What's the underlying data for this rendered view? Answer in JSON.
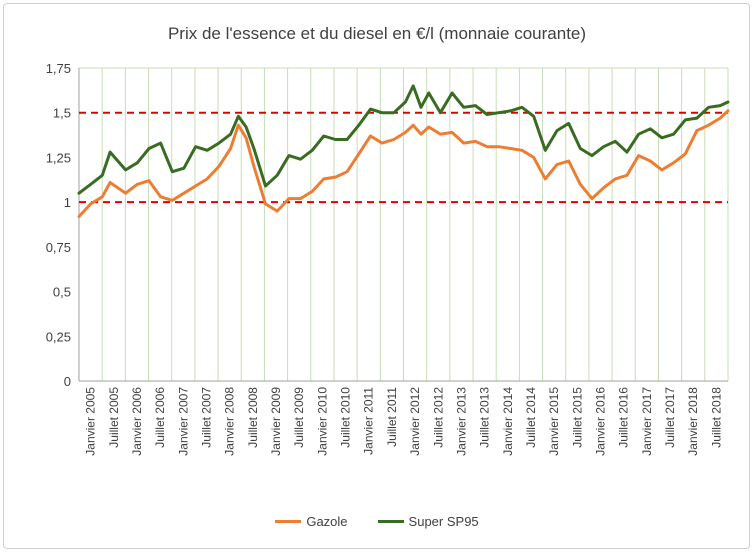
{
  "chart_data": {
    "type": "line",
    "title": "Prix de l'essence et du diesel en €/l (monnaie courante)",
    "ylim": [
      0,
      1.75
    ],
    "yticks": [
      0,
      0.25,
      0.5,
      0.75,
      1,
      1.25,
      1.5,
      1.75
    ],
    "ytick_labels": [
      "0",
      "0,25",
      "0,5",
      "0,75",
      "1",
      "1,25",
      "1,5",
      "1,75"
    ],
    "xlim": [
      "2005-01",
      "2018-12"
    ],
    "xtick_labels": [
      "Janvier 2005",
      "Juillet 2005",
      "Janvier 2006",
      "Juillet 2006",
      "Janvier 2007",
      "Juillet 2007",
      "Janvier 2008",
      "Juillet 2008",
      "Janvier 2009",
      "Juillet 2009",
      "Janvier 2010",
      "Juillet 2010",
      "Janvier 2011",
      "Juillet 2011",
      "Janvier 2012",
      "Juillet 2012",
      "Janvier 2013",
      "Juillet 2013",
      "Janvier 2014",
      "Juillet 2014",
      "Janvier 2015",
      "Juillet 2015",
      "Janvier 2016",
      "Juillet 2016",
      "Janvier 2017",
      "Juillet 2017",
      "Janvier 2018",
      "Juillet 2018"
    ],
    "reference_lines": [
      1.5,
      1
    ],
    "grid": "vertical",
    "legend_position": "bottom",
    "series": [
      {
        "name": "Gazole",
        "color": "#ed7d31",
        "x": [
          "2005-01",
          "2005-04",
          "2005-07",
          "2005-09",
          "2006-01",
          "2006-04",
          "2006-07",
          "2006-10",
          "2007-01",
          "2007-04",
          "2007-07",
          "2007-10",
          "2008-01",
          "2008-04",
          "2008-06",
          "2008-08",
          "2008-10",
          "2009-01",
          "2009-04",
          "2009-07",
          "2009-10",
          "2010-01",
          "2010-04",
          "2010-07",
          "2010-10",
          "2011-01",
          "2011-04",
          "2011-07",
          "2011-10",
          "2012-01",
          "2012-03",
          "2012-05",
          "2012-07",
          "2012-10",
          "2013-01",
          "2013-04",
          "2013-07",
          "2013-10",
          "2014-01",
          "2014-04",
          "2014-07",
          "2014-10",
          "2015-01",
          "2015-04",
          "2015-07",
          "2015-10",
          "2016-01",
          "2016-04",
          "2016-07",
          "2016-10",
          "2017-01",
          "2017-04",
          "2017-07",
          "2017-10",
          "2018-01",
          "2018-04",
          "2018-07",
          "2018-10",
          "2018-12"
        ],
        "values": [
          0.92,
          0.99,
          1.03,
          1.11,
          1.05,
          1.1,
          1.12,
          1.03,
          1.01,
          1.05,
          1.09,
          1.13,
          1.2,
          1.3,
          1.43,
          1.36,
          1.2,
          0.99,
          0.95,
          1.02,
          1.02,
          1.06,
          1.13,
          1.14,
          1.17,
          1.27,
          1.37,
          1.33,
          1.35,
          1.39,
          1.43,
          1.38,
          1.42,
          1.38,
          1.39,
          1.33,
          1.34,
          1.31,
          1.31,
          1.3,
          1.29,
          1.25,
          1.13,
          1.21,
          1.23,
          1.1,
          1.02,
          1.08,
          1.13,
          1.15,
          1.26,
          1.23,
          1.18,
          1.22,
          1.27,
          1.4,
          1.43,
          1.47,
          1.51
        ]
      },
      {
        "name": "Super SP95",
        "color": "#3a6b22",
        "x": [
          "2005-01",
          "2005-04",
          "2005-07",
          "2005-09",
          "2006-01",
          "2006-04",
          "2006-07",
          "2006-10",
          "2007-01",
          "2007-04",
          "2007-07",
          "2007-10",
          "2008-01",
          "2008-04",
          "2008-06",
          "2008-08",
          "2008-10",
          "2009-01",
          "2009-04",
          "2009-07",
          "2009-10",
          "2010-01",
          "2010-04",
          "2010-07",
          "2010-10",
          "2011-01",
          "2011-04",
          "2011-07",
          "2011-10",
          "2012-01",
          "2012-03",
          "2012-05",
          "2012-07",
          "2012-10",
          "2013-01",
          "2013-04",
          "2013-07",
          "2013-10",
          "2014-01",
          "2014-04",
          "2014-07",
          "2014-10",
          "2015-01",
          "2015-04",
          "2015-07",
          "2015-10",
          "2016-01",
          "2016-04",
          "2016-07",
          "2016-10",
          "2017-01",
          "2017-04",
          "2017-07",
          "2017-10",
          "2018-01",
          "2018-04",
          "2018-07",
          "2018-10",
          "2018-12"
        ],
        "values": [
          1.05,
          1.1,
          1.15,
          1.28,
          1.18,
          1.22,
          1.3,
          1.33,
          1.17,
          1.19,
          1.31,
          1.29,
          1.33,
          1.38,
          1.48,
          1.42,
          1.3,
          1.09,
          1.15,
          1.26,
          1.24,
          1.29,
          1.37,
          1.35,
          1.35,
          1.43,
          1.52,
          1.5,
          1.5,
          1.56,
          1.65,
          1.53,
          1.61,
          1.5,
          1.61,
          1.53,
          1.54,
          1.49,
          1.5,
          1.51,
          1.53,
          1.48,
          1.29,
          1.4,
          1.44,
          1.3,
          1.26,
          1.31,
          1.34,
          1.28,
          1.38,
          1.41,
          1.36,
          1.38,
          1.46,
          1.47,
          1.53,
          1.54,
          1.56
        ]
      }
    ]
  }
}
